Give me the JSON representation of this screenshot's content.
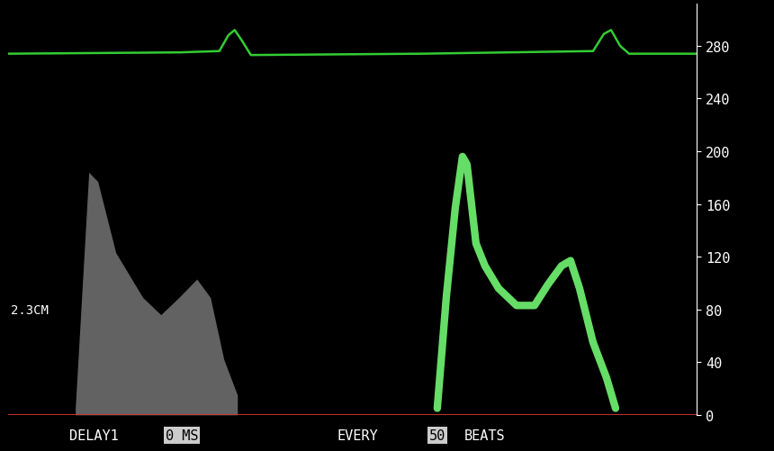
{
  "chart_data": {
    "type": "line",
    "annotations": [
      "2.3CM",
      "DELAY1",
      "0 MS",
      "EVERY",
      "50",
      "BEATS"
    ],
    "xlim": [
      10,
      775
    ],
    "ylim": [
      0,
      312
    ],
    "yticks": [
      0,
      40,
      80,
      120,
      160,
      200,
      240,
      280
    ],
    "tick_labels": "y",
    "grid": false,
    "series": [
      {
        "type": "area",
        "color": "#b4b4b4",
        "x": [
          85,
          100,
          110,
          130,
          160,
          180,
          200,
          220,
          235,
          250,
          265
        ],
        "values": [
          5,
          184,
          177,
          123,
          89,
          76,
          89,
          103,
          89,
          42,
          15
        ]
      },
      {
        "type": "line",
        "color": "#66dd66",
        "x": [
          487,
          497,
          507,
          515,
          520,
          530,
          540,
          555,
          575,
          595,
          610,
          625,
          635,
          645,
          660,
          675,
          685
        ],
        "values": [
          5,
          89,
          157,
          196,
          190,
          130,
          113,
          96,
          83,
          83,
          99,
          113,
          117,
          96,
          55,
          28,
          5
        ]
      },
      {
        "type": "line",
        "color": "#33cc33",
        "x": [
          10,
          200,
          245,
          255,
          262,
          270,
          280,
          470,
          660,
          672,
          680,
          690,
          700,
          775
        ],
        "values": [
          274,
          275,
          276,
          288,
          292,
          284,
          273,
          274,
          276,
          289,
          292,
          280,
          274,
          274
        ]
      }
    ]
  }
}
